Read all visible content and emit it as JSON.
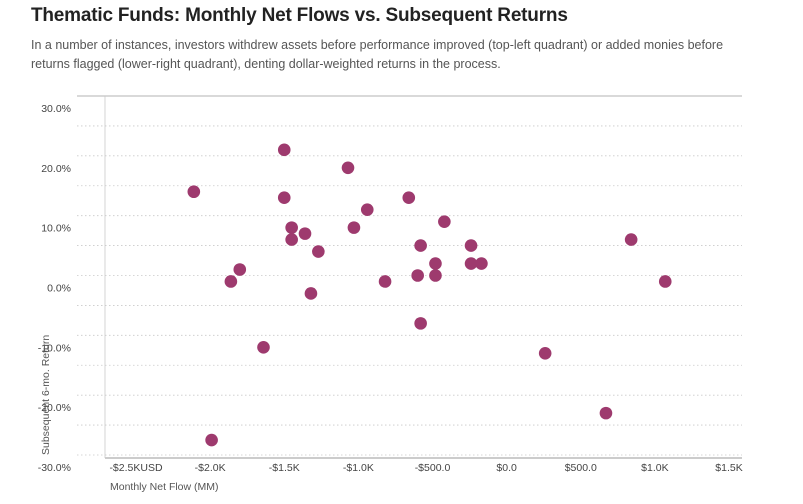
{
  "chart_data": {
    "type": "scatter",
    "title": "Thematic Funds: Monthly Net Flows vs. Subsequent Returns",
    "subtitle": "In a number of instances, investors withdrew assets before performance improved (top-left quadrant) or added monies before returns flagged (lower-right quadrant), denting dollar-weighted returns in the process.",
    "xlabel": "Monthly Net Flow (MM)",
    "ylabel": "Subsequent 6-mo. Return",
    "xlim": [
      -2500,
      1500
    ],
    "ylim": [
      -30,
      30
    ],
    "x_ticks": [
      {
        "value": -2500,
        "label": "-$2.5KUSD"
      },
      {
        "value": -2000,
        "label": "-$2.0K"
      },
      {
        "value": -1500,
        "label": "-$1.5K"
      },
      {
        "value": -1000,
        "label": "-$1.0K"
      },
      {
        "value": -500,
        "label": "-$500.0"
      },
      {
        "value": 0,
        "label": "$0.0"
      },
      {
        "value": 500,
        "label": "$500.0"
      },
      {
        "value": 1000,
        "label": "$1.0K"
      },
      {
        "value": 1500,
        "label": "$1.5K"
      }
    ],
    "y_ticks": [
      {
        "value": 30,
        "label": "30.0%"
      },
      {
        "value": 20,
        "label": "20.0%"
      },
      {
        "value": 10,
        "label": "10.0%"
      },
      {
        "value": 0,
        "label": "0.0%"
      },
      {
        "value": -10,
        "label": "-10.0%"
      },
      {
        "value": -20,
        "label": "-20.0%"
      },
      {
        "value": -30,
        "label": "-30.0%"
      }
    ],
    "grid": true,
    "point_color": "#9e3a6e",
    "points": [
      {
        "x": -2110,
        "y": 14.0
      },
      {
        "x": -1500,
        "y": 21.0
      },
      {
        "x": -1500,
        "y": 13.0
      },
      {
        "x": -1450,
        "y": 8.0
      },
      {
        "x": -1450,
        "y": 6.0
      },
      {
        "x": -1360,
        "y": 7.0
      },
      {
        "x": -1270,
        "y": 4.0
      },
      {
        "x": -1320,
        "y": -3.0
      },
      {
        "x": -1800,
        "y": 1.0
      },
      {
        "x": -1860,
        "y": -1.0
      },
      {
        "x": -1640,
        "y": -12.0
      },
      {
        "x": -1990,
        "y": -27.5
      },
      {
        "x": -1070,
        "y": 18.0
      },
      {
        "x": -940,
        "y": 11.0
      },
      {
        "x": -1030,
        "y": 8.0
      },
      {
        "x": -820,
        "y": -1.0
      },
      {
        "x": -660,
        "y": 13.0
      },
      {
        "x": -580,
        "y": 5.0
      },
      {
        "x": -600,
        "y": 0.0
      },
      {
        "x": -580,
        "y": -8.0
      },
      {
        "x": -480,
        "y": 2.0
      },
      {
        "x": -480,
        "y": 0.0
      },
      {
        "x": -420,
        "y": 9.0
      },
      {
        "x": -240,
        "y": 5.0
      },
      {
        "x": -240,
        "y": 2.0
      },
      {
        "x": -170,
        "y": 2.0
      },
      {
        "x": 260,
        "y": -13.0
      },
      {
        "x": 670,
        "y": -23.0
      },
      {
        "x": 840,
        "y": 6.0
      },
      {
        "x": 1070,
        "y": -1.0
      }
    ]
  }
}
